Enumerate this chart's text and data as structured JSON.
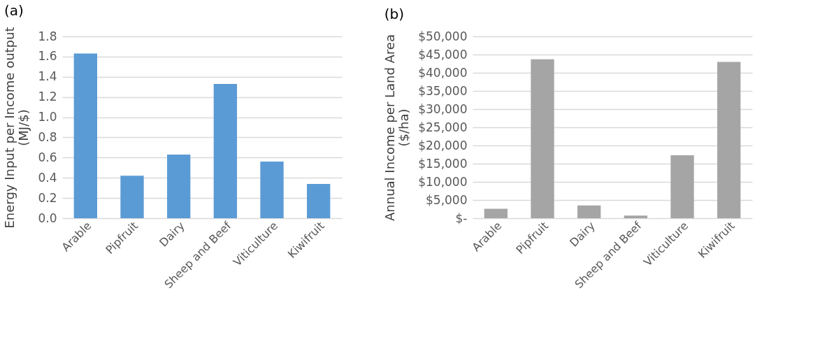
{
  "chart_data": [
    {
      "type": "bar",
      "title": "(a)",
      "ylabel": "Energy Input per Income output\n(MJ/$)",
      "categories": [
        "Arable",
        "Pipfruit",
        "Dairy",
        "Sheep and Beef",
        "Viticulture",
        "Kiwifruit"
      ],
      "series": [
        {
          "color": "#5b9bd5",
          "values": [
            1.63,
            0.42,
            0.63,
            1.33,
            0.56,
            0.34
          ]
        }
      ],
      "ylim": [
        0,
        1.8
      ],
      "yticks": [
        {
          "value": 0,
          "label": "0.0"
        },
        {
          "value": 0.2,
          "label": "0.2"
        },
        {
          "value": 0.4,
          "label": "0.4"
        },
        {
          "value": 0.6,
          "label": "0.6"
        },
        {
          "value": 0.8,
          "label": "0.8"
        },
        {
          "value": 1.0,
          "label": "1.0"
        },
        {
          "value": 1.2,
          "label": "1.2"
        },
        {
          "value": 1.4,
          "label": "1.4"
        },
        {
          "value": 1.6,
          "label": "1.6"
        },
        {
          "value": 1.8,
          "label": "1.8"
        }
      ],
      "grid": "y"
    },
    {
      "type": "bar",
      "title": "(b)",
      "ylabel": "Annual Income per Land Area\n($/ha)",
      "categories": [
        "Arable",
        "Pipfruit",
        "Dairy",
        "Sheep and Beef",
        "Viticulture",
        "Kiwifruit"
      ],
      "series": [
        {
          "color": "#a5a5a5",
          "values": [
            2600,
            43700,
            3500,
            700,
            17300,
            43000
          ]
        }
      ],
      "ylim": [
        0,
        50000
      ],
      "yticks": [
        {
          "value": 0,
          "label": "$-"
        },
        {
          "value": 5000,
          "label": "$5,000"
        },
        {
          "value": 10000,
          "label": "$10,000"
        },
        {
          "value": 15000,
          "label": "$15,000"
        },
        {
          "value": 20000,
          "label": "$20,000"
        },
        {
          "value": 25000,
          "label": "$25,000"
        },
        {
          "value": 30000,
          "label": "$30,000"
        },
        {
          "value": 35000,
          "label": "$35,000"
        },
        {
          "value": 40000,
          "label": "$40,000"
        },
        {
          "value": 45000,
          "label": "$45,000"
        },
        {
          "value": 50000,
          "label": "$50,000"
        }
      ],
      "grid": "y"
    }
  ]
}
